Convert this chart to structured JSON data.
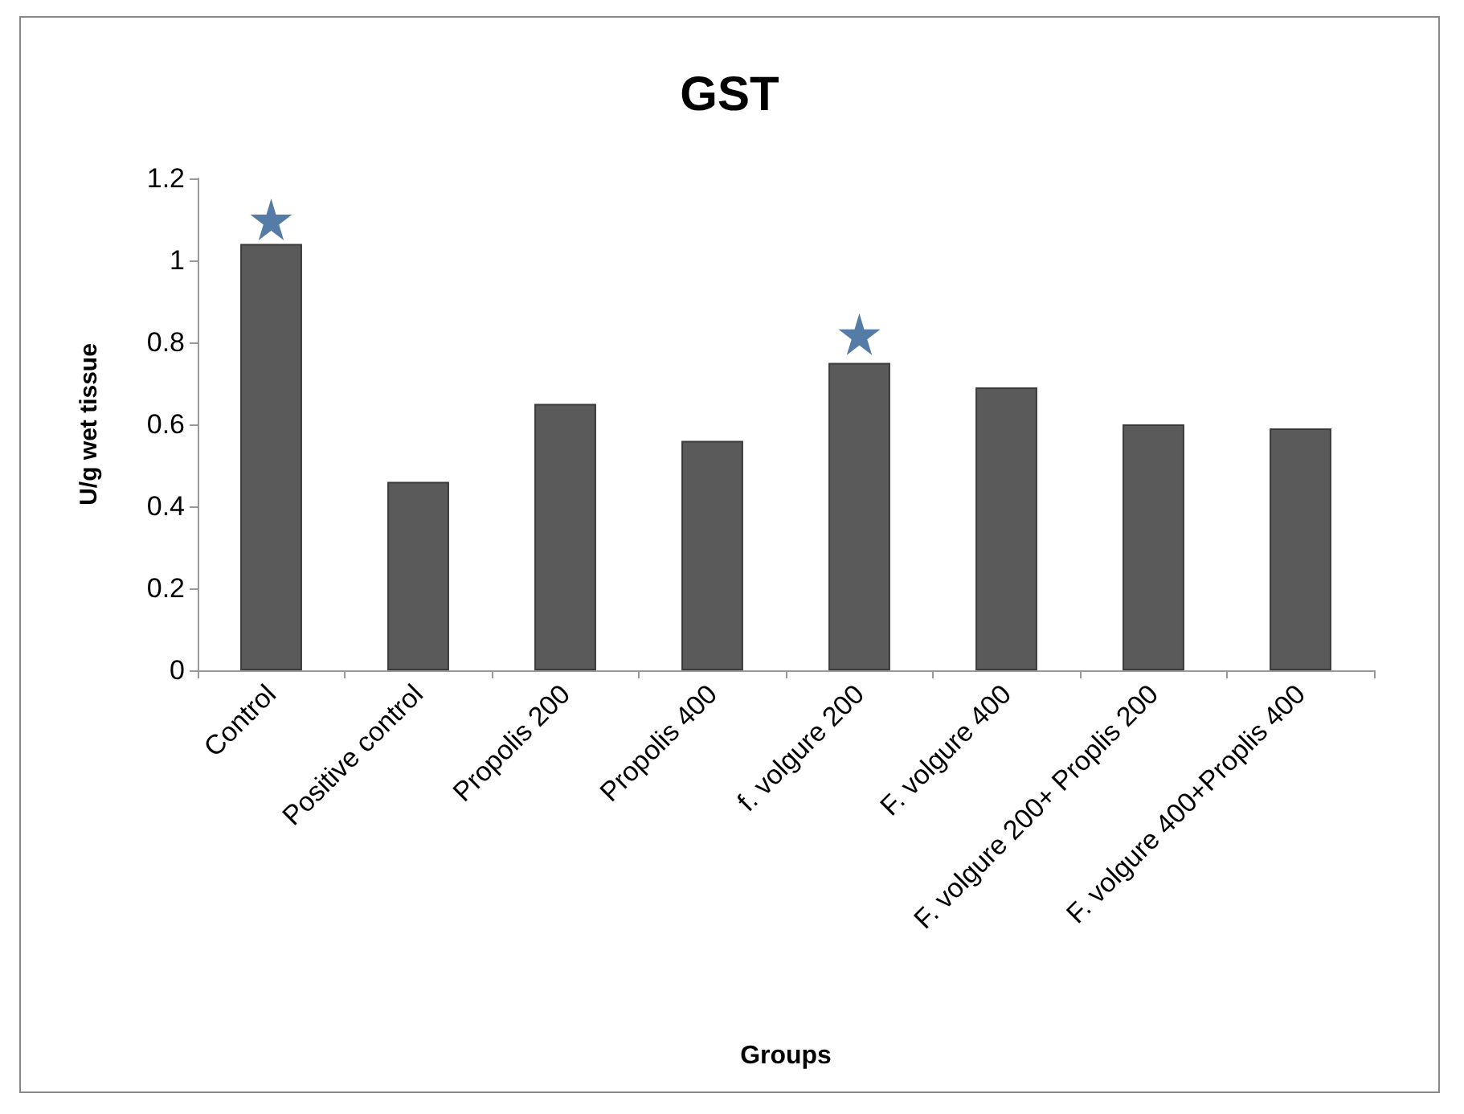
{
  "chart_data": {
    "type": "bar",
    "title": "GST",
    "xlabel": "Groups",
    "ylabel": "U/g wet tissue",
    "categories": [
      "Control",
      "Positive control",
      "Propolis 200",
      "Propolis 400",
      "f. volgure 200",
      "F. volgure 400",
      "F. volgure 200+ Proplis 200",
      "F. volgure 400+Proplis 400"
    ],
    "series": [
      {
        "color": "#5a5a5a",
        "values": [
          1.04,
          0.46,
          0.65,
          0.56,
          0.75,
          0.69,
          0.6,
          0.59
        ]
      },
      {
        "type": "scatter",
        "color": "#2b5a91",
        "x": [
          "Control",
          "f. volgure 200"
        ],
        "values": [
          1.1,
          0.82
        ]
      }
    ],
    "marker": "star",
    "ylim": [
      0,
      1.2
    ],
    "yticks": [
      0,
      0.2,
      0.4,
      0.6,
      0.8,
      1,
      1.2
    ],
    "grid": false
  }
}
